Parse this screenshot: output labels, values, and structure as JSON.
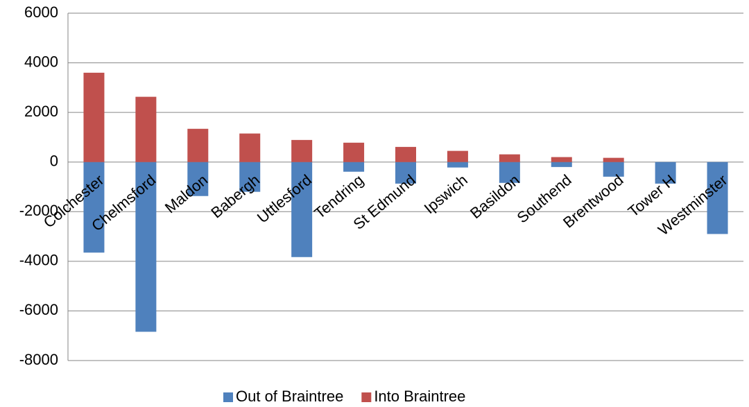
{
  "chart_data": {
    "type": "stacked_bar",
    "categories": [
      "Colchester",
      "Chelmsford",
      "Maldon",
      "Babergh",
      "Uttlesford",
      "Tendring",
      "St Edmund",
      "Ipswich",
      "Basildon",
      "Southend",
      "Brentwood",
      "Tower H",
      "Westminster"
    ],
    "series": [
      {
        "name": "Out of Braintree",
        "color": "#4f81bd",
        "values": [
          -3650,
          -6840,
          -1370,
          -1200,
          -3830,
          -390,
          -870,
          -220,
          -840,
          -200,
          -590,
          -870,
          -2900
        ]
      },
      {
        "name": "Into Braintree",
        "color": "#c0504d",
        "values": [
          3600,
          2630,
          1340,
          1150,
          890,
          780,
          610,
          450,
          310,
          200,
          170,
          0,
          0
        ]
      }
    ],
    "ylim": [
      -8000,
      6000
    ],
    "yticks": [
      -8000,
      -6000,
      -4000,
      -2000,
      0,
      2000,
      4000,
      6000
    ],
    "grid": true,
    "legend": "bottom"
  }
}
